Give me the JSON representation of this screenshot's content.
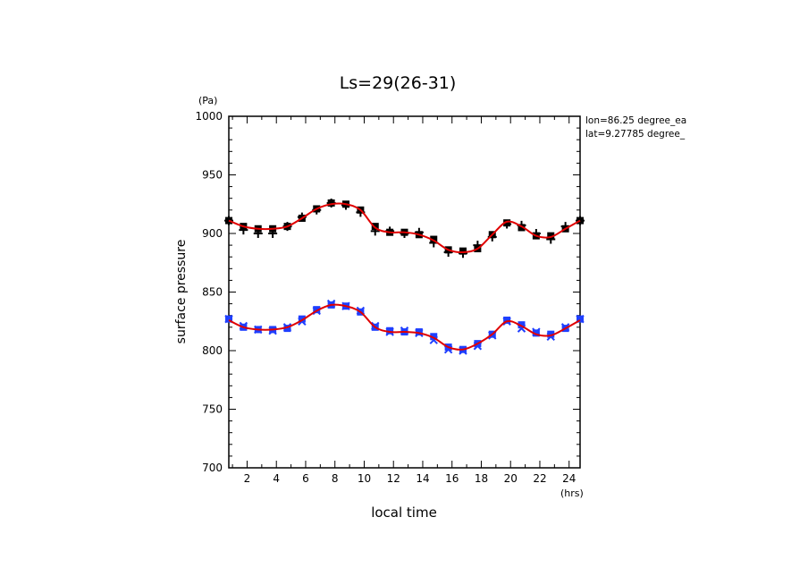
{
  "chart_data": {
    "type": "line",
    "title": "Ls=29(26-31)",
    "xlabel": "local time",
    "ylabel": "surface pressure",
    "x_unit": "(hrs)",
    "y_unit": "(Pa)",
    "xlim": [
      0.75,
      24.75
    ],
    "ylim": [
      700,
      1000
    ],
    "x_ticks": [
      2,
      4,
      6,
      8,
      10,
      12,
      14,
      16,
      18,
      20,
      22,
      24
    ],
    "x_tick_labels": [
      "2",
      "4",
      "6",
      "8",
      "10",
      "12",
      "14",
      "16",
      "18",
      "20",
      "22",
      "24"
    ],
    "y_ticks": [
      700,
      750,
      800,
      850,
      900,
      950,
      1000
    ],
    "y_tick_labels": [
      "700",
      "750",
      "800",
      "850",
      "900",
      "950",
      "1000"
    ],
    "annotations": [
      "lon=86.25 degree_ea",
      "lat=9.27785 degree_"
    ],
    "grid": false,
    "hours": [
      0.75,
      1.75,
      2.75,
      3.75,
      4.75,
      5.75,
      6.75,
      7.75,
      8.75,
      9.75,
      10.75,
      11.75,
      12.75,
      13.75,
      14.75,
      15.75,
      16.75,
      17.75,
      18.75,
      19.75,
      20.75,
      21.75,
      22.75,
      23.75,
      24.75
    ],
    "series": [
      {
        "marker": "square",
        "color": "#000000",
        "values": [
          911,
          906,
          904,
          904,
          906,
          913,
          921,
          926,
          925,
          920,
          906,
          901,
          901,
          899,
          895,
          886,
          885,
          887,
          899,
          909,
          905,
          898,
          898,
          904,
          911
        ]
      },
      {
        "marker": "plus",
        "color": "#000000",
        "values": [
          911,
          903,
          900,
          900,
          906,
          914,
          920,
          926,
          924,
          918,
          902,
          902,
          900,
          901,
          892,
          884,
          883,
          890,
          897,
          908,
          907,
          900,
          895,
          906,
          911
        ]
      },
      {
        "marker": "square",
        "color": "#1f3fff",
        "values": [
          827,
          820,
          818,
          818,
          819,
          827,
          835,
          839,
          838,
          833,
          820,
          817,
          816,
          816,
          812,
          803,
          801,
          806,
          814,
          826,
          822,
          815,
          814,
          819,
          827
        ]
      },
      {
        "marker": "cross",
        "color": "#1f3fff",
        "values": [
          827,
          821,
          818,
          817,
          820,
          825,
          834,
          840,
          838,
          834,
          821,
          816,
          817,
          815,
          809,
          801,
          800,
          804,
          813,
          825,
          819,
          816,
          812,
          820,
          827
        ]
      },
      {
        "marker": "line",
        "color": "#e00000",
        "values": [
          911,
          906,
          904,
          904,
          906,
          913,
          921,
          925,
          925,
          920,
          905,
          901,
          901,
          899,
          894,
          886,
          884,
          887,
          899,
          910,
          906,
          898,
          897,
          904,
          911
        ]
      },
      {
        "marker": "line",
        "color": "#e00000",
        "values": [
          826,
          820,
          818,
          818,
          820,
          826,
          834,
          839,
          838,
          833,
          820,
          816,
          816,
          815,
          811,
          803,
          801,
          806,
          814,
          825,
          821,
          814,
          813,
          819,
          826
        ]
      }
    ]
  }
}
